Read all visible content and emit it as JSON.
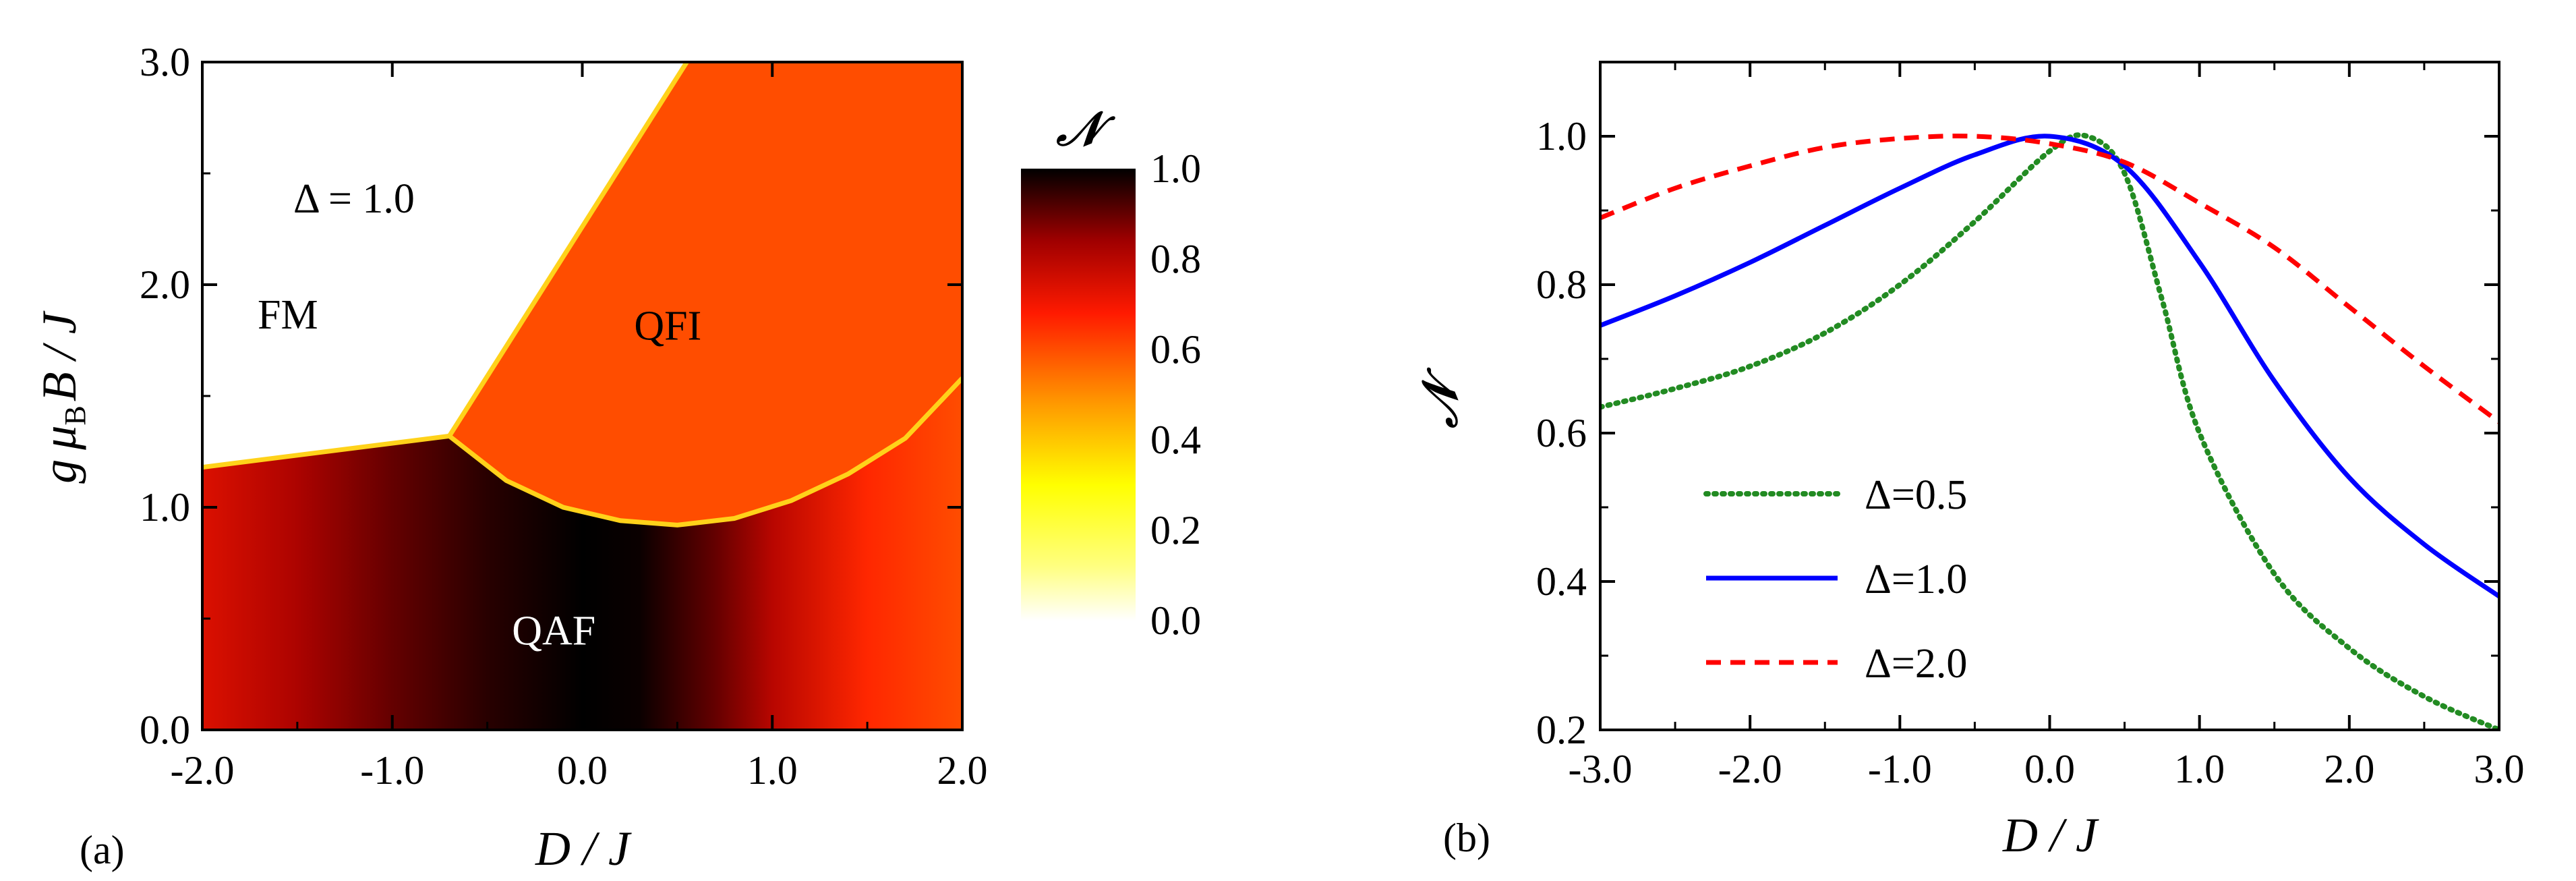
{
  "chart_data": [
    {
      "panel": "(a)",
      "type": "heatmap",
      "xlabel": "D / J",
      "ylabel_parts": {
        "g": "g",
        "mu": "μ",
        "sub": "B",
        "rest": "B / J"
      },
      "xlim": [
        -2.0,
        2.0
      ],
      "ylim": [
        0.0,
        3.0
      ],
      "x_ticks": [
        "-2.0",
        "-1.0",
        "0.0",
        "1.0",
        "2.0"
      ],
      "x_tick_values": [
        -2.0,
        -1.0,
        0.0,
        1.0,
        2.0
      ],
      "y_ticks": [
        "0.0",
        "1.0",
        "2.0",
        "3.0"
      ],
      "y_tick_values": [
        0.0,
        1.0,
        2.0,
        3.0
      ],
      "annotation": "Δ = 1.0",
      "regions": [
        {
          "name": "FM",
          "D": -1.55,
          "B": 1.87,
          "color": "#000000"
        },
        {
          "name": "QFI",
          "D": 0.45,
          "B": 1.82,
          "color": "#000000"
        },
        {
          "name": "QAF",
          "D": -0.15,
          "B": 0.45,
          "color": "#ffffff"
        }
      ],
      "boundaries": {
        "qaf_fm": [
          [
            -2.0,
            1.18
          ],
          [
            -0.7,
            1.32
          ]
        ],
        "fm_qfi": [
          [
            -0.7,
            1.32
          ],
          [
            0.55,
            3.0
          ]
        ],
        "qaf_qfi": [
          [
            -0.7,
            1.32
          ],
          [
            -0.4,
            1.12
          ],
          [
            -0.1,
            1.0
          ],
          [
            0.2,
            0.94
          ],
          [
            0.5,
            0.92
          ],
          [
            0.8,
            0.95
          ],
          [
            1.1,
            1.03
          ],
          [
            1.4,
            1.15
          ],
          [
            1.7,
            1.31
          ],
          [
            2.0,
            1.58
          ]
        ]
      },
      "qaf_concurrence": {
        "D": [
          -2.0,
          -1.5,
          -1.0,
          -0.5,
          0.0,
          0.3,
          0.7,
          1.0,
          1.5,
          2.0
        ],
        "value": [
          0.74,
          0.82,
          0.9,
          0.96,
          1.0,
          0.99,
          0.9,
          0.8,
          0.66,
          0.6
        ]
      },
      "qfi_value": 0.6,
      "colorbar": {
        "label": "𝒩",
        "ticks": [
          "0.0",
          "0.2",
          "0.4",
          "0.6",
          "0.8",
          "1.0"
        ],
        "tick_values": [
          0.0,
          0.2,
          0.4,
          0.6,
          0.8,
          1.0
        ],
        "colormap": "hot (white → yellow → orange → red → dark red → black)"
      }
    },
    {
      "panel": "(b)",
      "type": "line",
      "xlabel": "D / J",
      "ylabel": "𝒩",
      "xlim": [
        -3.0,
        3.0
      ],
      "ylim": [
        0.2,
        1.1
      ],
      "x_ticks": [
        "-3.0",
        "-2.0",
        "-1.0",
        "0.0",
        "1.0",
        "2.0",
        "3.0"
      ],
      "x_tick_values": [
        -3.0,
        -2.0,
        -1.0,
        0.0,
        1.0,
        2.0,
        3.0
      ],
      "y_ticks": [
        "0.2",
        "0.4",
        "0.6",
        "0.8",
        "1.0"
      ],
      "y_tick_values": [
        0.2,
        0.4,
        0.6,
        0.8,
        1.0
      ],
      "legend_position": "lower-left",
      "series": [
        {
          "name": "Δ=0.5",
          "color": "#228B22",
          "style": "dotted",
          "x": [
            -3.0,
            -2.5,
            -2.0,
            -1.5,
            -1.0,
            -0.5,
            0.0,
            0.25,
            0.5,
            0.75,
            1.0,
            1.5,
            2.0,
            2.5,
            3.0
          ],
          "y": [
            0.635,
            0.66,
            0.69,
            0.735,
            0.8,
            0.885,
            0.98,
            1.0,
            0.95,
            0.78,
            0.6,
            0.41,
            0.31,
            0.245,
            0.2
          ]
        },
        {
          "name": "Δ=1.0",
          "color": "#0000FF",
          "style": "solid",
          "x": [
            -3.0,
            -2.5,
            -2.0,
            -1.5,
            -1.0,
            -0.5,
            0.0,
            0.5,
            1.0,
            1.5,
            2.0,
            2.5,
            3.0
          ],
          "y": [
            0.745,
            0.785,
            0.83,
            0.88,
            0.93,
            0.975,
            1.0,
            0.96,
            0.83,
            0.67,
            0.54,
            0.45,
            0.38
          ]
        },
        {
          "name": "Δ=2.0",
          "color": "#FF0000",
          "style": "dashed",
          "x": [
            -3.0,
            -2.5,
            -2.0,
            -1.5,
            -1.0,
            -0.5,
            0.0,
            0.5,
            1.0,
            1.5,
            2.0,
            2.5,
            3.0
          ],
          "y": [
            0.89,
            0.93,
            0.96,
            0.985,
            0.997,
            1.0,
            0.99,
            0.965,
            0.91,
            0.85,
            0.77,
            0.69,
            0.615
          ]
        }
      ]
    }
  ]
}
